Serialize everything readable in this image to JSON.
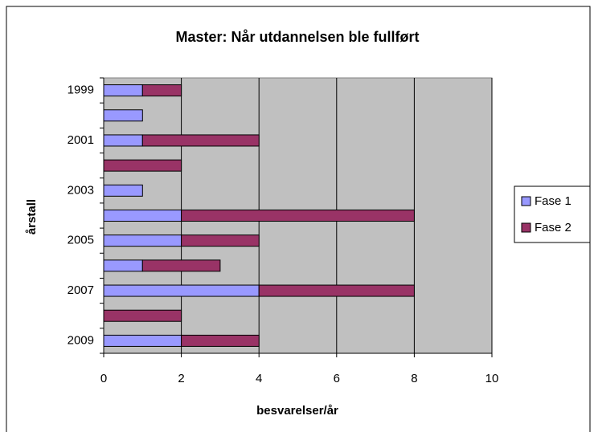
{
  "chart_data": {
    "type": "bar",
    "orientation": "horizontal",
    "stacked": true,
    "title": "Master: Når utdannelsen ble fullført",
    "xlabel": "besvarelser/år",
    "ylabel": "årstall",
    "categories": [
      "1999",
      null,
      "2001",
      null,
      "2003",
      null,
      "2005",
      null,
      "2007",
      null,
      "2009"
    ],
    "series": [
      {
        "name": "Fase 1",
        "color": "#9999ff",
        "values": [
          1,
          1,
          1,
          0,
          1,
          2,
          2,
          1,
          4,
          0,
          2
        ]
      },
      {
        "name": "Fase 2",
        "color": "#993366",
        "values": [
          1,
          0,
          3,
          2,
          0,
          6,
          2,
          2,
          4,
          2,
          2
        ]
      }
    ],
    "xlim": [
      0,
      10
    ],
    "xticks": [
      0,
      2,
      4,
      6,
      8,
      10
    ],
    "grid": true,
    "legend": "right",
    "plot_background": "#c0c0c0"
  }
}
